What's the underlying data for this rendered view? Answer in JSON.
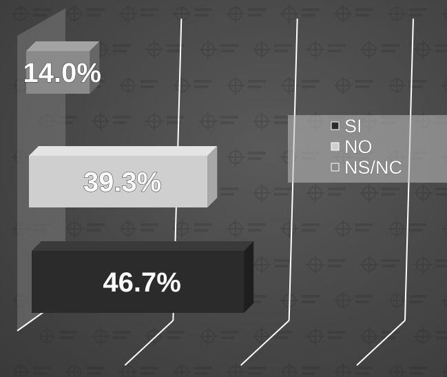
{
  "chart_data": {
    "type": "bar",
    "orientation": "horizontal",
    "style": "3d",
    "series": [
      {
        "name": "SI",
        "value": 46.7,
        "label": "46.7%",
        "color": "#2b2b2b",
        "top_color": "#3a3a3a",
        "end_color": "#1e1e1e"
      },
      {
        "name": "NO",
        "value": 39.3,
        "label": "39.3%",
        "color": "#cfcfcf",
        "top_color": "#e4e4e4",
        "end_color": "#a8a8a8"
      },
      {
        "name": "NS/NC",
        "value": 14.0,
        "label": "14.0%",
        "color": "#8a8a8a",
        "top_color": "#a3a3a3",
        "end_color": "#666666"
      }
    ],
    "xlim": [
      0,
      75
    ],
    "gridlines": [
      25,
      50,
      75
    ],
    "legend_position": "right",
    "grid": true
  },
  "legend": {
    "items": [
      {
        "label": "SI",
        "color": "#2b2b2b"
      },
      {
        "label": "NO",
        "color": "#cfcfcf"
      },
      {
        "label": "NS/NC",
        "color": "#8a8a8a"
      }
    ]
  }
}
